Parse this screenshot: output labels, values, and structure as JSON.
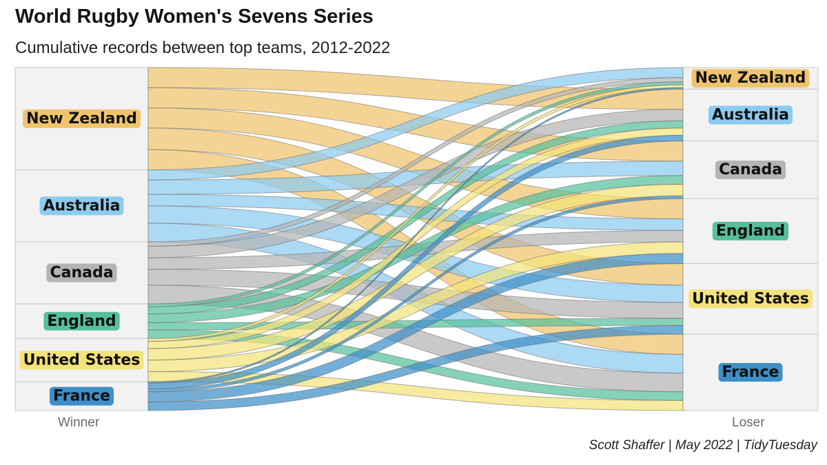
{
  "title": "World Rugby Women's Sevens Series",
  "subtitle": "Cumulative records between top teams, 2012-2022",
  "caption": "Scott Shaffer | May 2022 | TidyTuesday",
  "colors": {
    "New Zealand": "#f0c46c",
    "Australia": "#8ccbf0",
    "Canada": "#b4b4b4",
    "England": "#56c09c",
    "United States": "#f4e37a",
    "France": "#3d8fc8"
  },
  "chart_data": {
    "type": "sankey",
    "xlabel_left": "Winner",
    "xlabel_right": "Loser",
    "winners": [
      "New Zealand",
      "Australia",
      "Canada",
      "England",
      "United States",
      "France"
    ],
    "losers": [
      "New Zealand",
      "Australia",
      "Canada",
      "England",
      "United States",
      "France"
    ],
    "flows": [
      {
        "winner": "New Zealand",
        "loser": "Australia",
        "value": 14
      },
      {
        "winner": "New Zealand",
        "loser": "Canada",
        "value": 14
      },
      {
        "winner": "New Zealand",
        "loser": "England",
        "value": 14
      },
      {
        "winner": "New Zealand",
        "loser": "United States",
        "value": 15
      },
      {
        "winner": "New Zealand",
        "loser": "France",
        "value": 14
      },
      {
        "winner": "Australia",
        "loser": "New Zealand",
        "value": 7
      },
      {
        "winner": "Australia",
        "loser": "Canada",
        "value": 10
      },
      {
        "winner": "Australia",
        "loser": "England",
        "value": 8
      },
      {
        "winner": "Australia",
        "loser": "United States",
        "value": 12
      },
      {
        "winner": "Australia",
        "loser": "France",
        "value": 13
      },
      {
        "winner": "Canada",
        "loser": "New Zealand",
        "value": 3
      },
      {
        "winner": "Canada",
        "loser": "Australia",
        "value": 8
      },
      {
        "winner": "Canada",
        "loser": "England",
        "value": 8
      },
      {
        "winner": "Canada",
        "loser": "United States",
        "value": 11
      },
      {
        "winner": "Canada",
        "loser": "France",
        "value": 13
      },
      {
        "winner": "England",
        "loser": "New Zealand",
        "value": 2
      },
      {
        "winner": "England",
        "loser": "Australia",
        "value": 5
      },
      {
        "winner": "England",
        "loser": "Canada",
        "value": 6
      },
      {
        "winner": "England",
        "loser": "United States",
        "value": 5
      },
      {
        "winner": "England",
        "loser": "France",
        "value": 6
      },
      {
        "winner": "United States",
        "loser": "New Zealand",
        "value": 2
      },
      {
        "winner": "United States",
        "loser": "Australia",
        "value": 5
      },
      {
        "winner": "United States",
        "loser": "Canada",
        "value": 8
      },
      {
        "winner": "United States",
        "loser": "England",
        "value": 8
      },
      {
        "winner": "United States",
        "loser": "France",
        "value": 7
      },
      {
        "winner": "France",
        "loser": "New Zealand",
        "value": 1
      },
      {
        "winner": "France",
        "loser": "Australia",
        "value": 4
      },
      {
        "winner": "France",
        "loser": "Canada",
        "value": 2
      },
      {
        "winner": "France",
        "loser": "England",
        "value": 7
      },
      {
        "winner": "France",
        "loser": "United States",
        "value": 6
      }
    ]
  }
}
